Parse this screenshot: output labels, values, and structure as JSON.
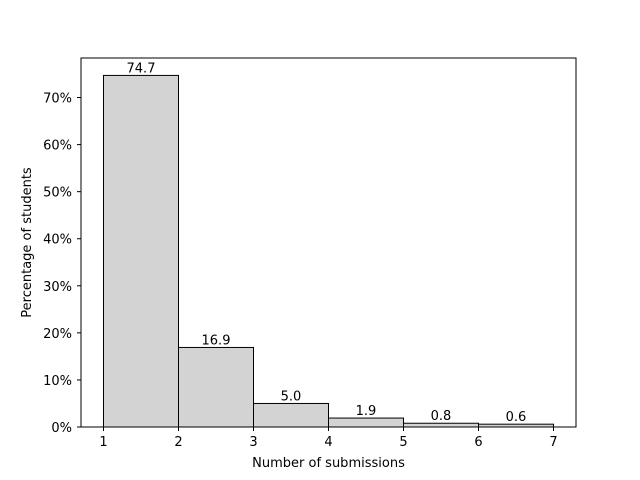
{
  "chart_data": {
    "type": "bar",
    "histogram": true,
    "title": "",
    "xlabel": "Number of submissions",
    "ylabel": "Percentage of students",
    "bins": [
      {
        "x_start": 1,
        "x_end": 2,
        "value": 74.7,
        "label": "74.7"
      },
      {
        "x_start": 2,
        "x_end": 3,
        "value": 16.9,
        "label": "16.9"
      },
      {
        "x_start": 3,
        "x_end": 4,
        "value": 5.0,
        "label": "5.0"
      },
      {
        "x_start": 4,
        "x_end": 5,
        "value": 1.9,
        "label": "1.9"
      },
      {
        "x_start": 5,
        "x_end": 6,
        "value": 0.8,
        "label": "0.8"
      },
      {
        "x_start": 6,
        "x_end": 7,
        "value": 0.6,
        "label": "0.6"
      }
    ],
    "xlim": [
      0.7,
      7.3
    ],
    "ylim": [
      0,
      78.4
    ],
    "x_ticks": [
      {
        "value": 1,
        "label": "1"
      },
      {
        "value": 2,
        "label": "2"
      },
      {
        "value": 3,
        "label": "3"
      },
      {
        "value": 4,
        "label": "4"
      },
      {
        "value": 5,
        "label": "5"
      },
      {
        "value": 6,
        "label": "6"
      },
      {
        "value": 7,
        "label": "7"
      }
    ],
    "y_ticks": [
      {
        "value": 0,
        "label": "0%"
      },
      {
        "value": 10,
        "label": "10%"
      },
      {
        "value": 20,
        "label": "20%"
      },
      {
        "value": 30,
        "label": "30%"
      },
      {
        "value": 40,
        "label": "40%"
      },
      {
        "value": 50,
        "label": "50%"
      },
      {
        "value": 60,
        "label": "60%"
      },
      {
        "value": 70,
        "label": "70%"
      }
    ],
    "grid": false,
    "bar_color": "#d3d3d3",
    "edge_color": "#000000"
  }
}
